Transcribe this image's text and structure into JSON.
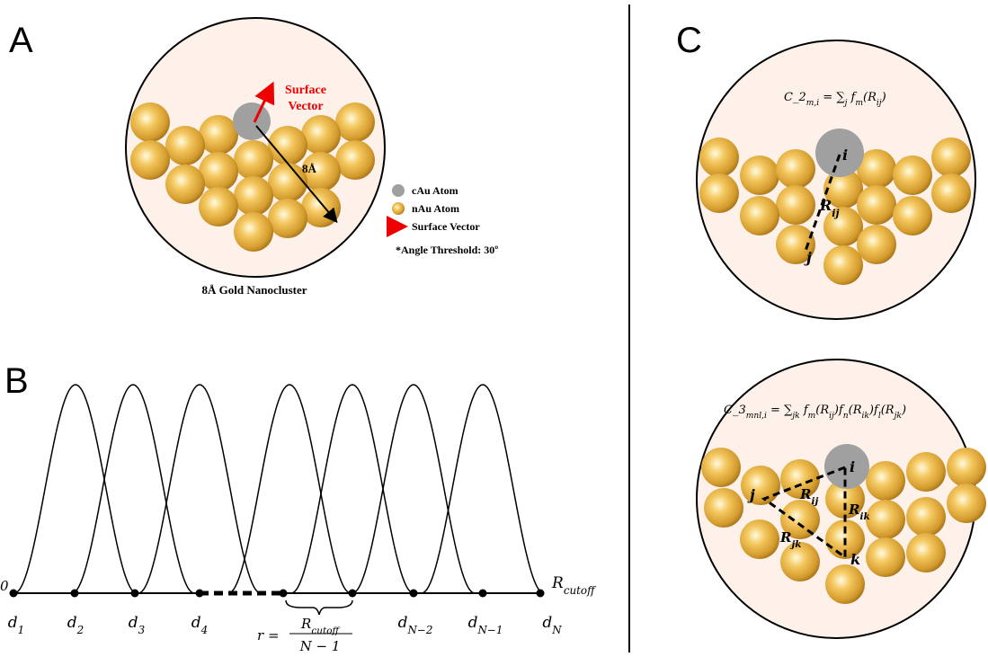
{
  "panels": {
    "a": "A",
    "b": "B",
    "c": "C"
  },
  "panel_a": {
    "surface_vector": [
      "Surface",
      "Vector"
    ],
    "radius_label": "8Å",
    "legend": [
      "cAu Atom",
      "nAu Atom",
      "Surface Vector"
    ],
    "note": "*Angle Threshold: 30º",
    "caption": "8Å Gold Nanocluster"
  },
  "panel_b": {
    "origin": "0",
    "points": [
      [
        {
          "text": "d"
        },
        {
          "sub": "1"
        }
      ],
      [
        {
          "text": "d"
        },
        {
          "sub": "2"
        }
      ],
      [
        {
          "text": "d"
        },
        {
          "sub": "3"
        }
      ],
      [
        {
          "text": "d"
        },
        {
          "sub": "4"
        }
      ],
      [
        {
          "text": "d"
        },
        {
          "sub": "N−2"
        }
      ],
      [
        {
          "text": "d"
        },
        {
          "sub": "N−1"
        }
      ],
      [
        {
          "text": "d"
        },
        {
          "sub": "N"
        }
      ]
    ],
    "cutoff": [
      {
        "text": "R"
      },
      {
        "sub": "cutoff"
      }
    ],
    "spacing": {
      "lhs": [
        {
          "text": "r ="
        }
      ],
      "numerator": [
        {
          "text": "R"
        },
        {
          "sub": "cutoff"
        }
      ],
      "denominator": [
        {
          "text": "N − 1"
        }
      ]
    }
  },
  "panel_c": {
    "top": {
      "formula": [
        {
          "text": "C_2"
        },
        {
          "sub": "m,i"
        },
        {
          "text": " = ∑"
        },
        {
          "sub": "j"
        },
        {
          "text": " f"
        },
        {
          "sub": "m"
        },
        {
          "text": "(R"
        },
        {
          "sub": "ij"
        },
        {
          "text": ")"
        }
      ],
      "i": "i",
      "j": "j",
      "rij": [
        {
          "text": "R"
        },
        {
          "sub": "ij"
        }
      ]
    },
    "bottom": {
      "formula": [
        {
          "text": "C_3"
        },
        {
          "sub": "mnl,i"
        },
        {
          "text": " = ∑"
        },
        {
          "sub": "jk"
        },
        {
          "text": " f"
        },
        {
          "sub": "m"
        },
        {
          "text": "(R"
        },
        {
          "sub": "ij"
        },
        {
          "text": ")f"
        },
        {
          "sub": "n"
        },
        {
          "text": "(R"
        },
        {
          "sub": "ik"
        },
        {
          "text": ")f"
        },
        {
          "sub": "l"
        },
        {
          "text": "(R"
        },
        {
          "sub": "jk"
        },
        {
          "text": ")"
        }
      ],
      "i": "i",
      "j": "j",
      "k": "k",
      "rij": [
        {
          "text": "R"
        },
        {
          "sub": "ij"
        }
      ],
      "rik": [
        {
          "text": "R"
        },
        {
          "sub": "ik"
        }
      ],
      "rjk": [
        {
          "text": "R"
        },
        {
          "sub": "jk"
        }
      ]
    }
  }
}
